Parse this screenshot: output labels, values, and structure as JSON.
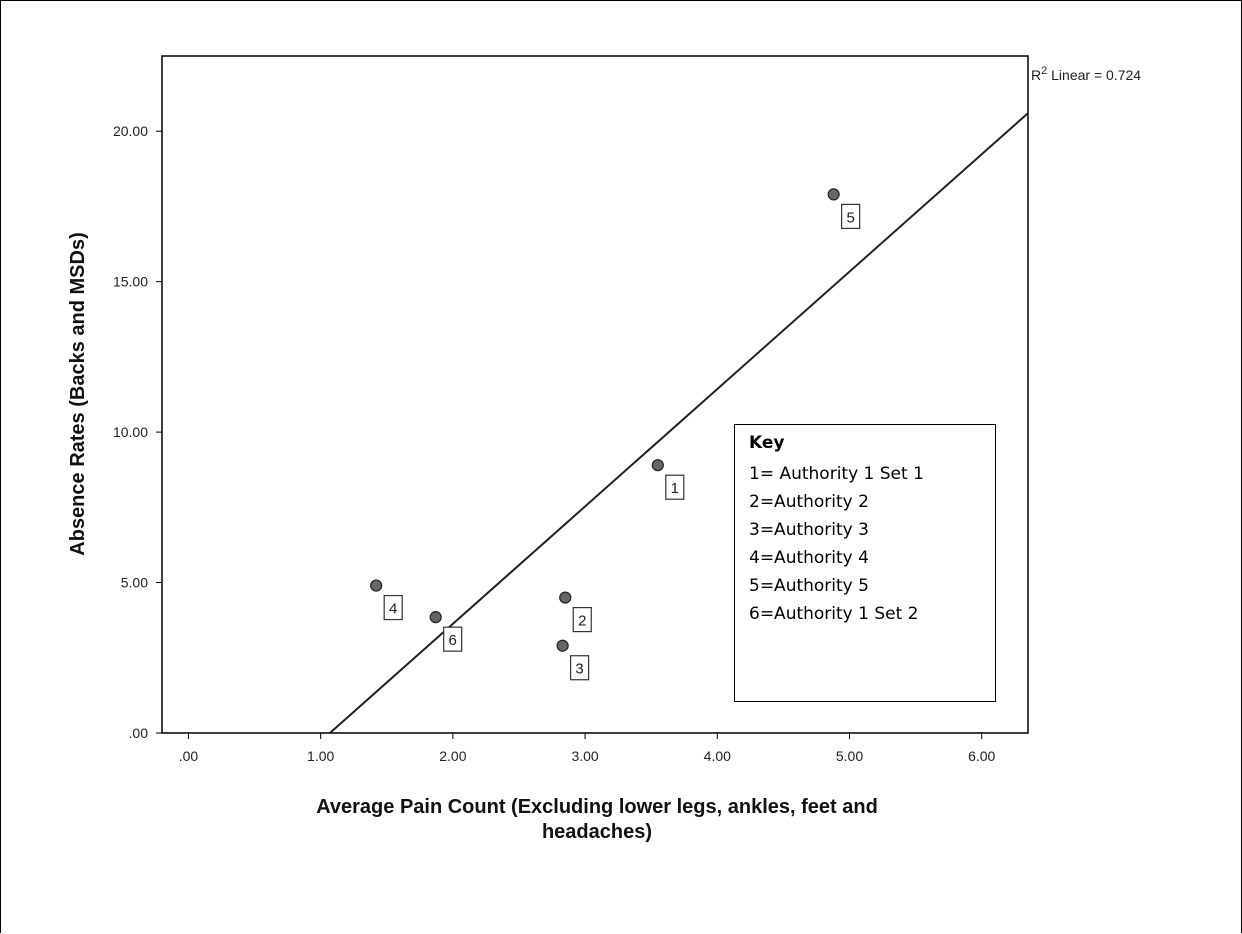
{
  "chart_data": {
    "type": "scatter",
    "xlabel": "Average Pain Count (Excluding lower legs, ankles, feet and headaches)",
    "xlabel_lines": [
      "Average Pain Count (Excluding lower legs, ankles, feet and",
      "headaches)"
    ],
    "ylabel": "Absence Rates (Backs and MSDs)",
    "xlim": [
      -0.2,
      6.35
    ],
    "ylim": [
      0,
      22.5
    ],
    "x_ticks": [
      0,
      1,
      2,
      3,
      4,
      5,
      6
    ],
    "x_tick_labels": [
      ".00",
      "1.00",
      "2.00",
      "3.00",
      "4.00",
      "5.00",
      "6.00"
    ],
    "y_ticks": [
      0,
      5,
      10,
      15,
      20
    ],
    "y_tick_labels": [
      ".00",
      "5.00",
      "10.00",
      "15.00",
      "20.00"
    ],
    "grid": false,
    "points": [
      {
        "label": "1",
        "x": 3.55,
        "y": 8.9
      },
      {
        "label": "2",
        "x": 2.85,
        "y": 4.5
      },
      {
        "label": "3",
        "x": 2.83,
        "y": 2.9
      },
      {
        "label": "4",
        "x": 1.42,
        "y": 4.9
      },
      {
        "label": "5",
        "x": 4.88,
        "y": 17.9
      },
      {
        "label": "6",
        "x": 1.87,
        "y": 3.85
      }
    ],
    "fit_line": {
      "type": "linear",
      "points": [
        [
          1.07,
          0
        ],
        [
          6.35,
          20.6
        ]
      ],
      "annotation_prefix": "R",
      "annotation_sup": "2",
      "annotation_suffix": " Linear = 0.724"
    },
    "colors": {
      "marker": "#666666",
      "marker_edge": "#222222",
      "line": "#222222"
    }
  },
  "key": {
    "title": "Key",
    "items": [
      "1= Authority 1 Set 1",
      "2=Authority 2",
      "3=Authority 3",
      "4=Authority 4",
      "5=Authority 5",
      "6=Authority 1 Set 2"
    ]
  }
}
